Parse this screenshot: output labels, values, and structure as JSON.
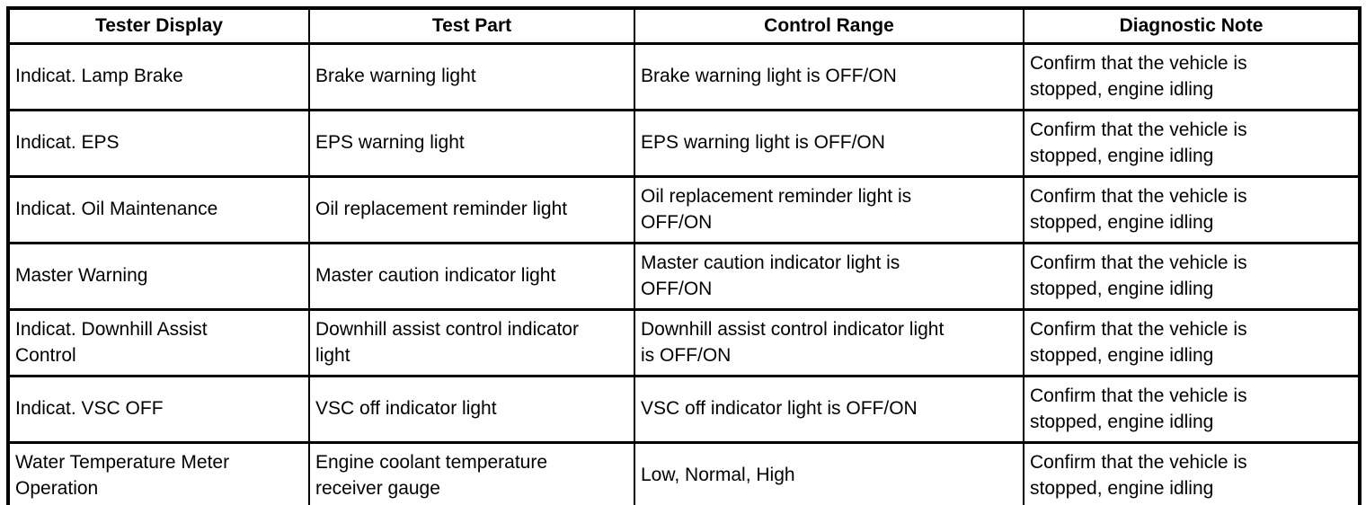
{
  "table": {
    "border_color": "#000000",
    "background_color": "#ffffff",
    "text_color": "#000000",
    "headers": [
      "Tester Display",
      "Test Part",
      "Control Range",
      "Diagnostic Note"
    ],
    "rows": [
      [
        "Indicat. Lamp Brake",
        "Brake warning light",
        "Brake warning light is OFF/ON",
        "Confirm that the vehicle is\nstopped, engine idling"
      ],
      [
        "Indicat. EPS",
        "EPS warning light",
        "EPS warning light is OFF/ON",
        "Confirm that the vehicle is\nstopped, engine idling"
      ],
      [
        "Indicat. Oil Maintenance",
        "Oil replacement reminder light",
        "Oil replacement reminder light is\nOFF/ON",
        "Confirm that the vehicle is\nstopped, engine idling"
      ],
      [
        "Master Warning",
        "Master caution indicator light",
        "Master caution indicator light is\nOFF/ON",
        "Confirm that the vehicle is\nstopped, engine idling"
      ],
      [
        "Indicat. Downhill Assist\nControl",
        "Downhill assist control indicator\nlight",
        "Downhill assist control indicator light\nis OFF/ON",
        "Confirm that the vehicle is\nstopped, engine idling"
      ],
      [
        "Indicat. VSC OFF",
        "VSC off indicator light",
        "VSC off indicator light is OFF/ON",
        "Confirm that the vehicle is\nstopped, engine idling"
      ],
      [
        "Water Temperature Meter\nOperation",
        "Engine coolant temperature\nreceiver gauge",
        "Low, Normal, High",
        "Confirm that the vehicle is\nstopped, engine idling"
      ]
    ]
  }
}
